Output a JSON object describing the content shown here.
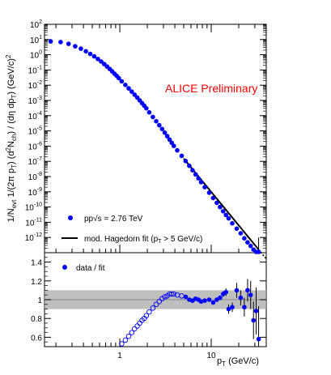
{
  "chart_data": [
    {
      "type": "scatter",
      "panel": "spectrum",
      "annotation": "ALICE Preliminary",
      "ylabel": "1/N_evt 1/(2π p_T) (d²N_ch) / (dη dp_T) (GeV/c)²",
      "xscale": "log",
      "yscale": "log",
      "xlim": [
        0.15,
        40
      ],
      "ylim": [
        1e-13,
        100
      ],
      "ytick_exponents": [
        2,
        1,
        0,
        -1,
        -2,
        -3,
        -4,
        -5,
        -6,
        -7,
        -8,
        -9,
        -10,
        -11,
        -12
      ],
      "legend_placement": "bottom-left",
      "series": [
        {
          "name": "pp√s = 2.76 TeV",
          "color": "#0000ff",
          "x": [
            0.175,
            0.225,
            0.275,
            0.325,
            0.375,
            0.425,
            0.475,
            0.525,
            0.575,
            0.625,
            0.675,
            0.725,
            0.775,
            0.825,
            0.875,
            0.925,
            0.975,
            1.05,
            1.15,
            1.25,
            1.35,
            1.45,
            1.55,
            1.65,
            1.75,
            1.85,
            1.95,
            2.1,
            2.3,
            2.5,
            2.7,
            2.9,
            3.1,
            3.3,
            3.5,
            3.7,
            3.9,
            4.25,
            4.75,
            5.25,
            5.75,
            6.25,
            6.75,
            7.25,
            7.75,
            8.5,
            9.5,
            10.5,
            11.5,
            12.5,
            13.5,
            14.5,
            15.5,
            17,
            19,
            21,
            23,
            25,
            27,
            29,
            31,
            33
          ],
          "y": [
            7.5,
            6.8,
            5.2,
            3.6,
            2.5,
            1.7,
            1.15,
            0.78,
            0.53,
            0.36,
            0.245,
            0.168,
            0.116,
            0.081,
            0.057,
            0.041,
            0.029,
            0.018,
            0.0105,
            0.0062,
            0.0038,
            0.0024,
            0.00155,
            0.00101,
            0.00067,
            0.00045,
            0.000305,
            0.000165,
            8.2e-05,
            4.3e-05,
            2.35e-05,
            1.32e-05,
            7.6e-06,
            4.5e-06,
            2.7e-06,
            1.65e-06,
            1.03e-06,
            5.3e-07,
            2.3e-07,
            1.05e-07,
            5.1e-08,
            2.6e-08,
            1.38e-08,
            7.6e-09,
            4.3e-09,
            2e-09,
            8.7e-10,
            3.9e-10,
            1.9e-10,
            1e-10,
            5.3e-11,
            3e-11,
            1.8e-11,
            8.5e-12,
            3.8e-12,
            1.9e-12,
            8.8e-13,
            4.8e-13,
            2.8e-13,
            1.6e-13,
            9e-14,
            2.2e-14
          ]
        }
      ],
      "fit": {
        "name": "mod. Hagedorn fit (p",
        "name_sub": "T",
        "name_suffix": " > 5 GeV/c)",
        "color": "#000000",
        "fit_range": [
          5,
          33
        ],
        "extrapolated_range": [
          33,
          40
        ]
      }
    },
    {
      "type": "scatter",
      "panel": "ratio",
      "xlabel": "p_T (GeV/c)",
      "xscale": "log",
      "xlim": [
        0.15,
        40
      ],
      "ylim": [
        0.5,
        1.5
      ],
      "xticks": [
        1,
        10
      ],
      "yticks": [
        0.6,
        0.8,
        1,
        1.2,
        1.4
      ],
      "legend_placement": "top-left",
      "systematic_band": {
        "ylow": 0.9,
        "yhigh": 1.1,
        "color": "#aaaaaa"
      },
      "series": [
        {
          "name": "data / fit",
          "marker": "filled",
          "color": "#0000ff",
          "x": [
            5.25,
            5.75,
            6.25,
            6.75,
            7.25,
            7.75,
            8.5,
            9.5,
            10.5,
            11.5,
            12.5,
            13.5,
            14.5,
            15.5,
            17,
            19,
            21,
            23,
            25,
            27,
            29,
            31,
            33
          ],
          "y": [
            1.03,
            1.0,
            0.99,
            1.01,
            1.0,
            0.98,
            0.99,
            1.0,
            0.97,
            1.0,
            1.02,
            1.06,
            1.08,
            0.9,
            0.92,
            1.1,
            1.02,
            0.92,
            1.1,
            1.05,
            0.78,
            0.88,
            0.58
          ],
          "yerr": [
            0.01,
            0.01,
            0.01,
            0.01,
            0.01,
            0.01,
            0.01,
            0.015,
            0.015,
            0.02,
            0.025,
            0.03,
            0.04,
            0.05,
            0.05,
            0.08,
            0.08,
            0.1,
            0.12,
            0.15,
            0.2,
            0.25,
            0.35
          ]
        },
        {
          "name": "",
          "marker": "open",
          "color": "#0000ff",
          "x": [
            1.05,
            1.15,
            1.25,
            1.35,
            1.45,
            1.55,
            1.65,
            1.75,
            1.85,
            1.95,
            2.1,
            2.3,
            2.5,
            2.7,
            2.9,
            3.1,
            3.3,
            3.5,
            3.7,
            3.9,
            4.25,
            4.75
          ],
          "y": [
            0.53,
            0.57,
            0.61,
            0.65,
            0.69,
            0.72,
            0.75,
            0.78,
            0.8,
            0.83,
            0.87,
            0.91,
            0.95,
            0.98,
            1.01,
            1.03,
            1.04,
            1.06,
            1.06,
            1.06,
            1.05,
            1.04
          ]
        }
      ]
    }
  ]
}
